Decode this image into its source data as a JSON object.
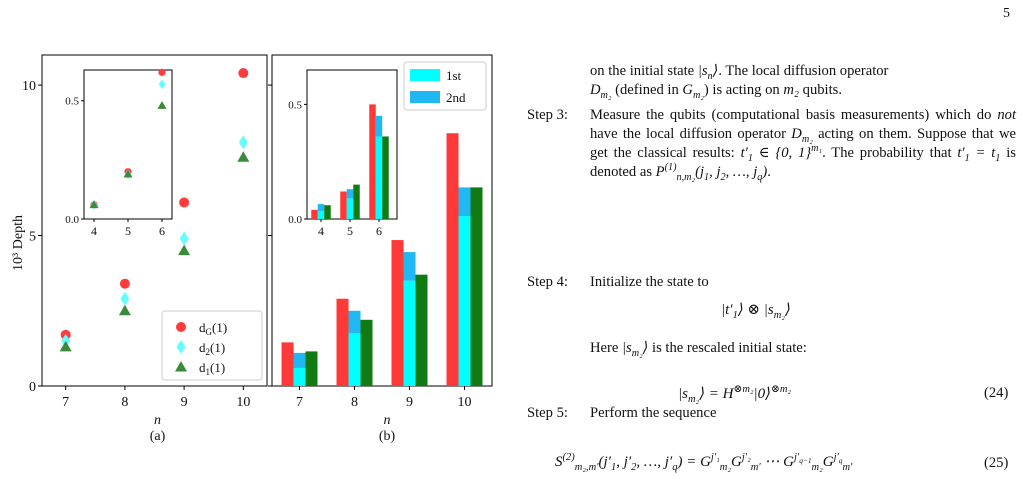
{
  "page_number": "5",
  "colors": {
    "dG": "#ff3b3b",
    "d2": "#66ffff",
    "d1": "#3a8a3a",
    "bar_red": "#ff3838",
    "bar_1st": "#00ffff",
    "bar_2nd": "#1fb8f2",
    "bar_green": "#127a12"
  },
  "figure": {
    "y_label": "10³ Depth",
    "panels": [
      {
        "x_label": "n",
        "caption": "(a)"
      },
      {
        "x_label": "n",
        "caption": "(b)"
      }
    ]
  },
  "chart_data": [
    {
      "type": "scatter",
      "panel": "(a)",
      "x": [
        7,
        8,
        9,
        10
      ],
      "xlim": [
        6.6,
        10.4
      ],
      "ylim": [
        0,
        11
      ],
      "y_ticks": [
        0,
        5,
        10
      ],
      "xlabel": "n",
      "ylabel": "10³ Depth",
      "legend_position": "bottom-right",
      "series": [
        {
          "name": "d_G(1)",
          "values": [
            1.7,
            3.4,
            6.1,
            10.4
          ]
        },
        {
          "name": "d_2(1)",
          "values": [
            1.5,
            2.9,
            4.9,
            8.1
          ]
        },
        {
          "name": "d_1(1)",
          "values": [
            1.3,
            2.5,
            4.5,
            7.6
          ]
        }
      ],
      "inset": {
        "x": [
          4,
          5,
          6
        ],
        "ylim": [
          0,
          0.63
        ],
        "y_ticks": [
          "0.0",
          "0.5"
        ],
        "series": [
          {
            "name": "d_G(1)",
            "values": [
              0.06,
              0.2,
              0.62
            ]
          },
          {
            "name": "d_2(1)",
            "values": [
              0.06,
              0.19,
              0.57
            ]
          },
          {
            "name": "d_1(1)",
            "values": [
              0.06,
              0.19,
              0.48
            ]
          }
        ]
      }
    },
    {
      "type": "bar",
      "panel": "(b)",
      "categories": [
        "7",
        "8",
        "9",
        "10"
      ],
      "xlabel": "n",
      "ylim": [
        0,
        11
      ],
      "legend_position": "top-right",
      "series": [
        {
          "name": "",
          "values": [
            1.45,
            2.9,
            4.85,
            8.4
          ]
        },
        {
          "name": "1st",
          "values": [
            0.6,
            1.75,
            3.5,
            5.65
          ]
        },
        {
          "name": "2nd",
          "values": [
            0.5,
            0.75,
            0.95,
            0.95
          ]
        },
        {
          "name": "",
          "values": [
            1.15,
            2.2,
            3.7,
            6.6
          ]
        }
      ],
      "inset": {
        "categories": [
          "4",
          "5",
          "6"
        ],
        "ylim": [
          0,
          0.65
        ],
        "y_ticks": [
          "0.0",
          "0.5"
        ],
        "series": [
          {
            "name": "",
            "values": [
              0.04,
              0.12,
              0.5
            ]
          },
          {
            "name": "1st",
            "values": [
              0.035,
              0.09,
              0.36
            ]
          },
          {
            "name": "2nd",
            "values": [
              0.03,
              0.04,
              0.09
            ]
          },
          {
            "name": "",
            "values": [
              0.06,
              0.15,
              0.36
            ]
          }
        ]
      }
    }
  ],
  "text": {
    "intro_line1_a": "on the initial state ",
    "intro_line1_b": ". The local diffusion operator",
    "intro_line2": "(defined in",
    "intro_line2_b": ") is acting on",
    "intro_line2_c": "qubits.",
    "step3_label": "Step 3:",
    "step3_body": "Measure the qubits (computational basis measurements) which do",
    "step3_not": "not",
    "step3_body_b": "have the local diffusion operator",
    "step3_body_c": "acting on them. Suppose that we get the classical results:",
    "step3_body_d": ". The probability that",
    "step3_body_e": "is denoted as",
    "step4_label": "Step 4:",
    "step4_body": "Initialize the state to",
    "here_text": "Here",
    "here_text_b": "is the rescaled initial state:",
    "step5_label": "Step 5:",
    "step5_body": "Perform the sequence",
    "eq24_num": "(24)",
    "eq25_num": "(25)"
  }
}
